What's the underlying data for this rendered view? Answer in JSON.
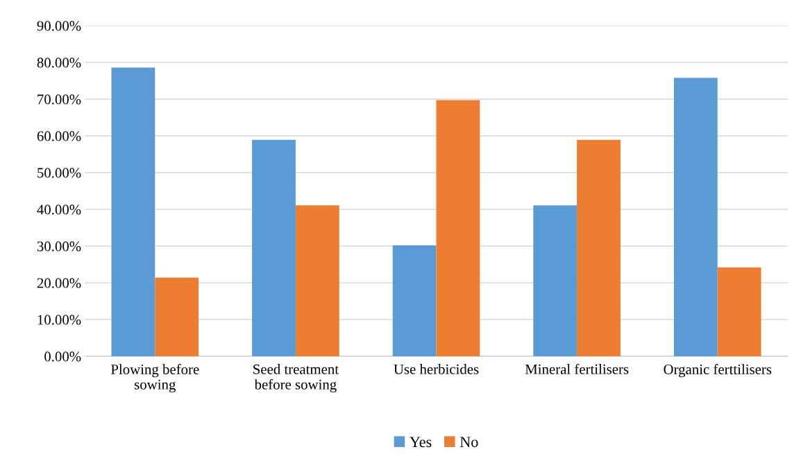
{
  "chart_data": {
    "type": "bar",
    "categories": [
      "Plowing before\nsowing",
      "Seed treatment\nbefore sowing",
      "Use herbicides",
      "Mineral fertilisers",
      "Organic ferttilisers"
    ],
    "series": [
      {
        "name": "Yes",
        "color": "#5b9bd5",
        "values": [
          78.6,
          58.9,
          30.2,
          41.1,
          75.8
        ]
      },
      {
        "name": "No",
        "color": "#ed7d31",
        "values": [
          21.4,
          41.1,
          69.7,
          58.9,
          24.2
        ]
      }
    ],
    "ylim": [
      0,
      90
    ],
    "yticks": [
      {
        "value": 0,
        "label": "0.00%"
      },
      {
        "value": 10,
        "label": "10.00%"
      },
      {
        "value": 20,
        "label": "20.00%"
      },
      {
        "value": 30,
        "label": "30.00%"
      },
      {
        "value": 40,
        "label": "40.00%"
      },
      {
        "value": 50,
        "label": "50.00%"
      },
      {
        "value": 60,
        "label": "60.00%"
      },
      {
        "value": 70,
        "label": "70.00%"
      },
      {
        "value": 80,
        "label": "80.00%"
      },
      {
        "value": 90,
        "label": "90.00%"
      }
    ],
    "grid": "y",
    "legend": "bottom"
  }
}
